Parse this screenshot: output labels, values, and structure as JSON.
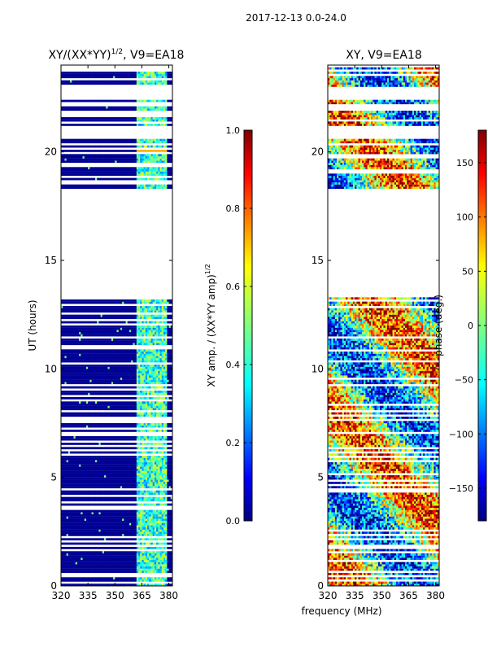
{
  "suptitle": "2017-12-13 0.0-24.0",
  "xlabel": "frequency (MHz)",
  "chart_data": [
    {
      "type": "heatmap",
      "title_main": "XY/(XX*YY)",
      "title_sup": "1/2",
      "title_tail": ", V9=EA18",
      "ylabel": "UT (hours)",
      "xlim": [
        320,
        382
      ],
      "ylim": [
        0,
        24
      ],
      "xticks": [
        320,
        335,
        350,
        365,
        380
      ],
      "yticks": [
        0,
        5,
        10,
        15,
        20
      ],
      "colorbar": {
        "label_main": "XY amp. / (XX*YY amp)",
        "label_sup": "1/2",
        "range": [
          0.0,
          1.0
        ],
        "ticks": [
          "0.0",
          "0.2",
          "0.4",
          "0.6",
          "0.8",
          "1.0"
        ],
        "tick_values": [
          0.0,
          0.2,
          0.4,
          0.6,
          0.8,
          1.0
        ]
      }
    },
    {
      "type": "heatmap",
      "title_main": "XY, V9=EA18",
      "ylabel": "",
      "xlim": [
        320,
        382
      ],
      "ylim": [
        0,
        24
      ],
      "xticks": [
        320,
        335,
        350,
        365,
        380
      ],
      "yticks": [
        0,
        5,
        10,
        15,
        20
      ],
      "colorbar": {
        "label_main": "phase (deg.)",
        "range": [
          -180,
          180
        ],
        "ticks": [
          "150",
          "100",
          "50",
          "0",
          "−50",
          "−100",
          "−150"
        ],
        "tick_values": [
          150,
          100,
          50,
          0,
          -50,
          -100,
          -150
        ]
      }
    }
  ],
  "data_gaps_hours": [
    [
      13.2,
      18.2
    ],
    [
      20.6,
      21.2
    ],
    [
      22.4,
      23.0
    ]
  ]
}
